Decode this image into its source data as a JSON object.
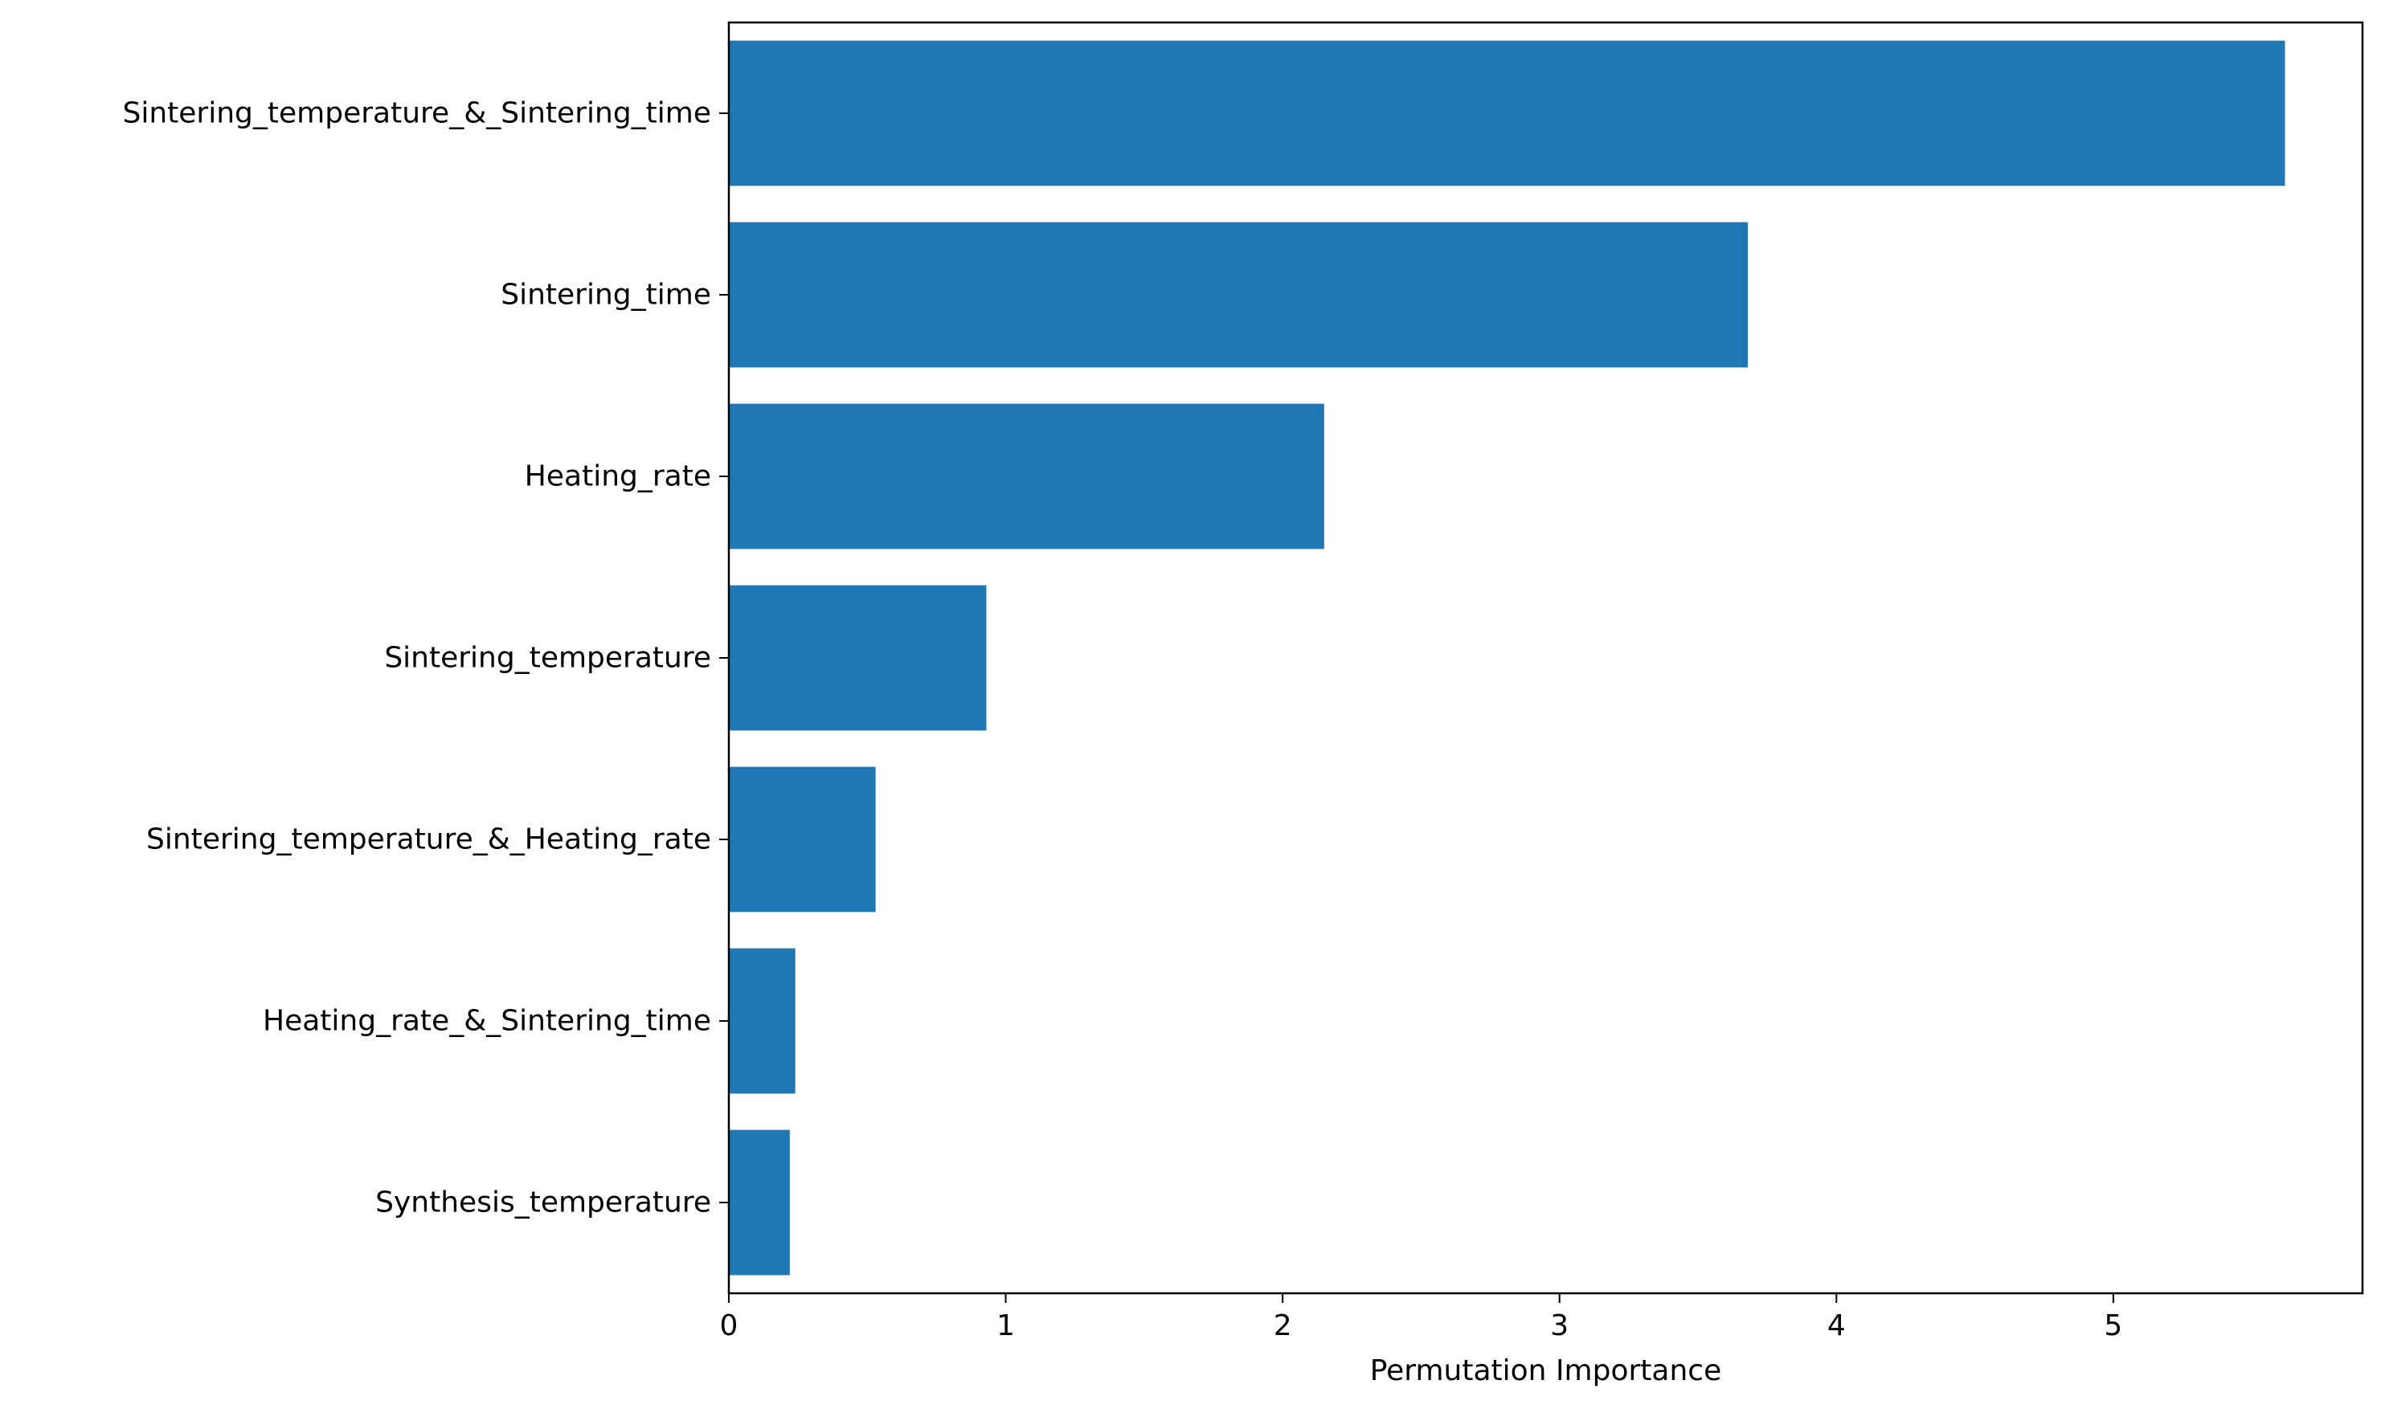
{
  "chart_data": {
    "type": "bar",
    "orientation": "horizontal",
    "categories": [
      "Sintering_temperature_&_Sintering_time",
      "Sintering_time",
      "Heating_rate",
      "Sintering_temperature",
      "Sintering_temperature_&_Heating_rate",
      "Heating_rate_&_Sintering_time",
      "Synthesis_temperature"
    ],
    "values": [
      5.62,
      3.68,
      2.15,
      0.93,
      0.53,
      0.24,
      0.22
    ],
    "title": "",
    "xlabel": "Permutation Importance",
    "ylabel": "",
    "xlim": [
      0,
      5.9
    ],
    "xticks": [
      0,
      1,
      2,
      3,
      4,
      5
    ],
    "grid": false,
    "bar_color": "#1f77b4"
  }
}
